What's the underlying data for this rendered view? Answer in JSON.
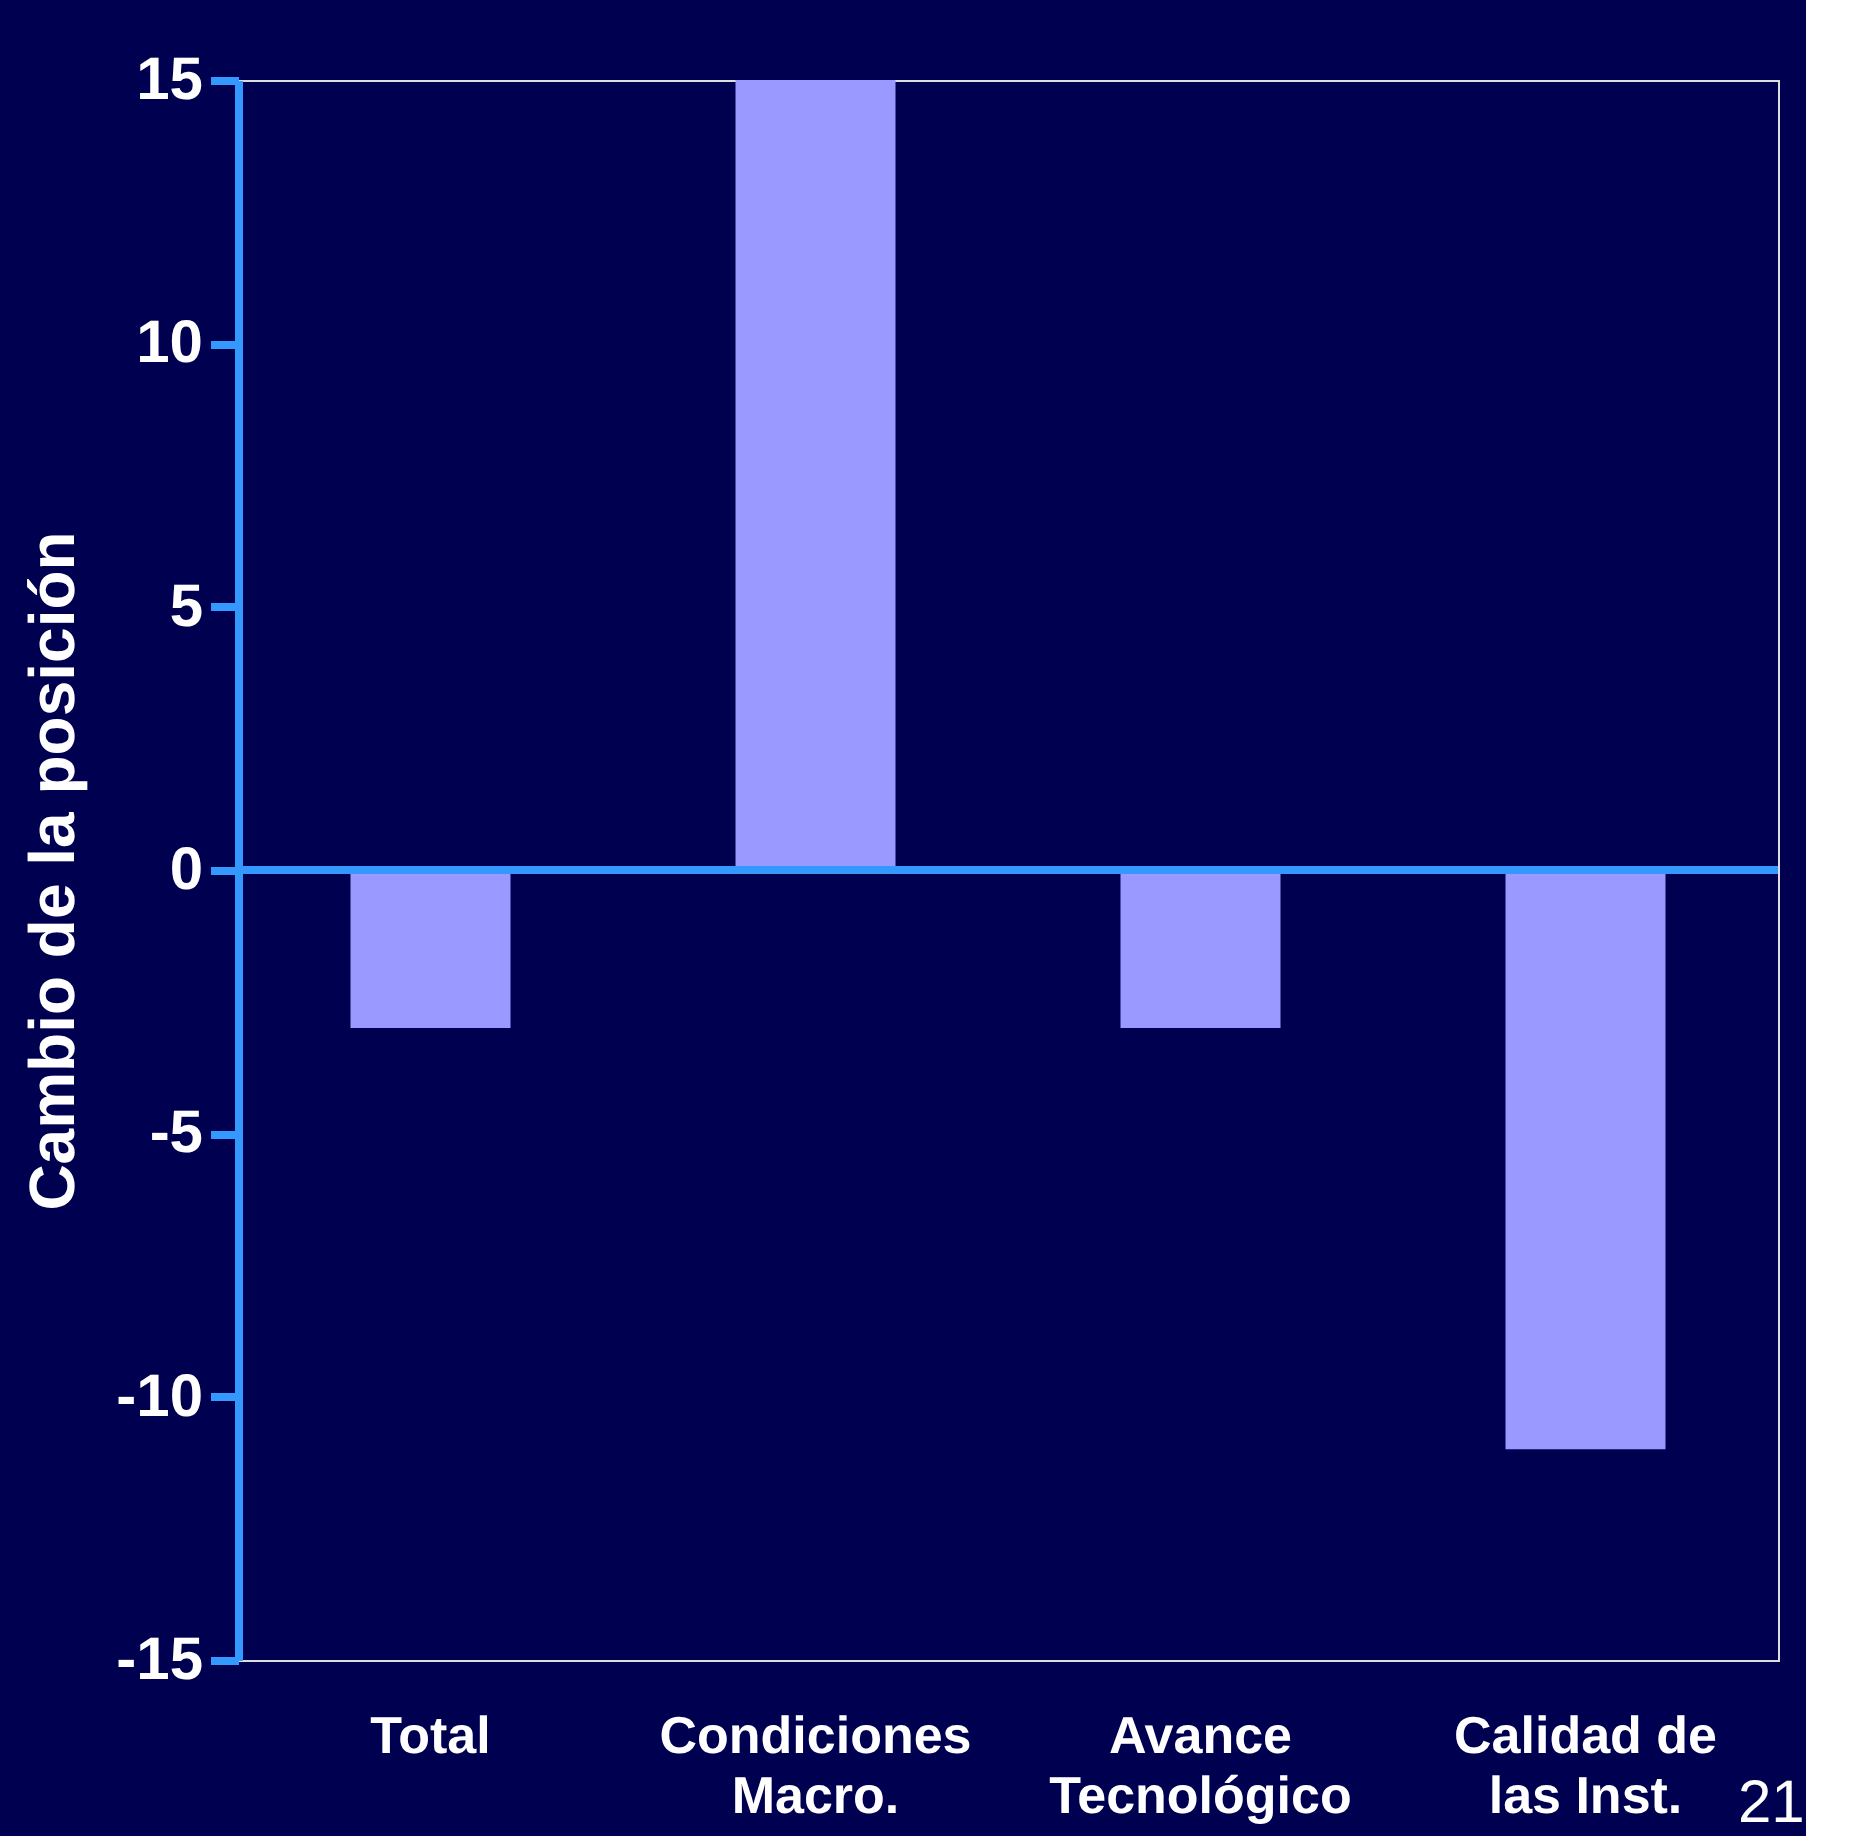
{
  "chart_data": {
    "type": "bar",
    "ylabel": "Cambio de la posición",
    "categories": [
      "Total",
      "Condiciones\nMacro.",
      "Avance\nTecnológico",
      "Calidad de\nlas Inst."
    ],
    "values": [
      -3,
      15,
      -3,
      -11
    ],
    "color": "#9999ff",
    "ylim": [
      -15,
      15
    ],
    "yticks": [
      -15,
      -10,
      -5,
      0,
      5,
      10,
      15
    ],
    "grid": false,
    "ref_lines": [
      {
        "axis": "y",
        "value": 0,
        "color": "#3399ff"
      }
    ],
    "annotations": [
      "21"
    ]
  }
}
